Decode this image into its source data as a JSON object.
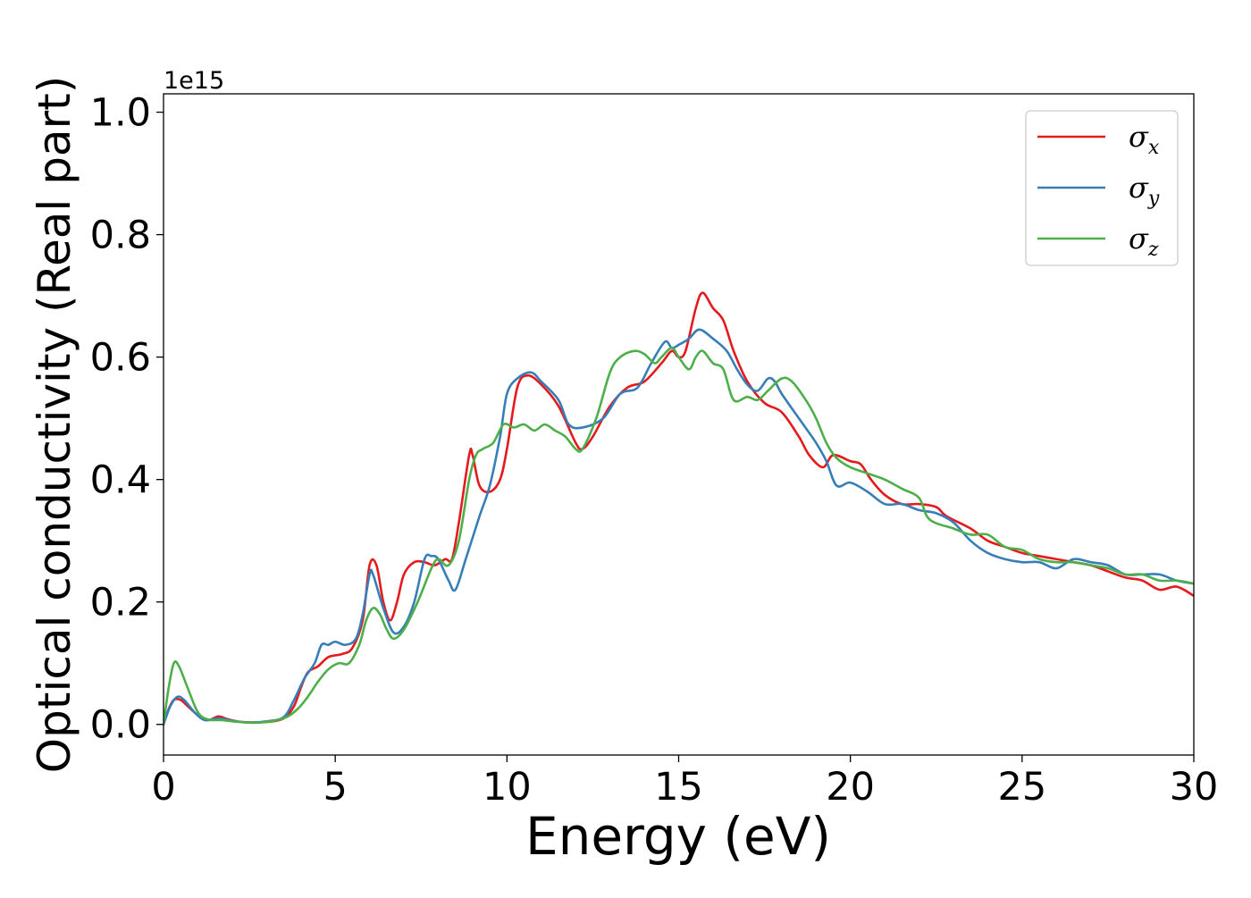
{
  "chart_data": {
    "type": "line",
    "title": "",
    "xlabel": "Energy (eV)",
    "ylabel": "Optical conductivity (Real part)",
    "y_scale_label": "1e15",
    "xlim": [
      0,
      30
    ],
    "ylim": [
      -0.05,
      1.03
    ],
    "x_ticks": [
      0,
      5,
      10,
      15,
      20,
      25,
      30
    ],
    "x_tick_labels": [
      "0",
      "5",
      "10",
      "15",
      "20",
      "25",
      "30"
    ],
    "y_ticks": [
      0.0,
      0.2,
      0.4,
      0.6,
      0.8,
      1.0
    ],
    "y_tick_labels": [
      "0.0",
      "0.2",
      "0.4",
      "0.6",
      "0.8",
      "1.0"
    ],
    "grid": false,
    "legend_position": "top-right",
    "series": [
      {
        "name": "σx",
        "legend_symbol": "σ",
        "legend_sub": "x",
        "color": "#e41a1c",
        "points": [
          [
            0,
            0
          ],
          [
            0.15,
            0.025
          ],
          [
            0.3,
            0.04
          ],
          [
            0.5,
            0.04
          ],
          [
            0.7,
            0.03
          ],
          [
            1.0,
            0.015
          ],
          [
            1.3,
            0.007
          ],
          [
            1.6,
            0.013
          ],
          [
            1.9,
            0.008
          ],
          [
            2.3,
            0.004
          ],
          [
            3.0,
            0.004
          ],
          [
            3.5,
            0.01
          ],
          [
            3.8,
            0.03
          ],
          [
            4.0,
            0.06
          ],
          [
            4.2,
            0.085
          ],
          [
            4.5,
            0.095
          ],
          [
            4.8,
            0.11
          ],
          [
            5.2,
            0.115
          ],
          [
            5.5,
            0.125
          ],
          [
            5.8,
            0.17
          ],
          [
            6.0,
            0.26
          ],
          [
            6.2,
            0.26
          ],
          [
            6.4,
            0.2
          ],
          [
            6.6,
            0.17
          ],
          [
            6.8,
            0.2
          ],
          [
            7.0,
            0.245
          ],
          [
            7.3,
            0.265
          ],
          [
            7.6,
            0.265
          ],
          [
            7.9,
            0.26
          ],
          [
            8.2,
            0.27
          ],
          [
            8.4,
            0.27
          ],
          [
            8.6,
            0.33
          ],
          [
            8.9,
            0.44
          ],
          [
            9.0,
            0.44
          ],
          [
            9.2,
            0.39
          ],
          [
            9.5,
            0.38
          ],
          [
            9.8,
            0.4
          ],
          [
            10.0,
            0.45
          ],
          [
            10.3,
            0.55
          ],
          [
            10.6,
            0.57
          ],
          [
            11.0,
            0.555
          ],
          [
            11.5,
            0.52
          ],
          [
            12.0,
            0.46
          ],
          [
            12.2,
            0.45
          ],
          [
            12.5,
            0.47
          ],
          [
            13.0,
            0.52
          ],
          [
            13.5,
            0.55
          ],
          [
            14.0,
            0.56
          ],
          [
            14.5,
            0.59
          ],
          [
            14.8,
            0.61
          ],
          [
            15.0,
            0.6
          ],
          [
            15.2,
            0.61
          ],
          [
            15.5,
            0.68
          ],
          [
            15.7,
            0.705
          ],
          [
            16.0,
            0.68
          ],
          [
            16.3,
            0.66
          ],
          [
            16.6,
            0.61
          ],
          [
            17.0,
            0.56
          ],
          [
            17.5,
            0.525
          ],
          [
            18.0,
            0.51
          ],
          [
            18.5,
            0.47
          ],
          [
            18.8,
            0.44
          ],
          [
            19.2,
            0.42
          ],
          [
            19.5,
            0.44
          ],
          [
            20.0,
            0.43
          ],
          [
            20.3,
            0.425
          ],
          [
            20.6,
            0.4
          ],
          [
            21.0,
            0.375
          ],
          [
            21.5,
            0.36
          ],
          [
            22.0,
            0.36
          ],
          [
            22.5,
            0.355
          ],
          [
            22.8,
            0.34
          ],
          [
            23.5,
            0.32
          ],
          [
            24.0,
            0.3
          ],
          [
            24.5,
            0.29
          ],
          [
            25.0,
            0.28
          ],
          [
            25.5,
            0.275
          ],
          [
            26.0,
            0.27
          ],
          [
            26.5,
            0.265
          ],
          [
            27.0,
            0.26
          ],
          [
            27.5,
            0.25
          ],
          [
            28.0,
            0.24
          ],
          [
            28.5,
            0.235
          ],
          [
            29.0,
            0.22
          ],
          [
            29.5,
            0.225
          ],
          [
            30.0,
            0.21
          ]
        ]
      },
      {
        "name": "σy",
        "legend_symbol": "σ",
        "legend_sub": "y",
        "color": "#377eb8",
        "points": [
          [
            0,
            0
          ],
          [
            0.2,
            0.03
          ],
          [
            0.4,
            0.045
          ],
          [
            0.6,
            0.04
          ],
          [
            0.9,
            0.02
          ],
          [
            1.2,
            0.007
          ],
          [
            1.6,
            0.01
          ],
          [
            2.0,
            0.006
          ],
          [
            2.5,
            0.003
          ],
          [
            3.0,
            0.005
          ],
          [
            3.5,
            0.012
          ],
          [
            3.8,
            0.04
          ],
          [
            4.1,
            0.075
          ],
          [
            4.4,
            0.1
          ],
          [
            4.6,
            0.13
          ],
          [
            4.8,
            0.13
          ],
          [
            5.0,
            0.135
          ],
          [
            5.3,
            0.13
          ],
          [
            5.6,
            0.14
          ],
          [
            5.8,
            0.18
          ],
          [
            6.0,
            0.245
          ],
          [
            6.1,
            0.245
          ],
          [
            6.4,
            0.19
          ],
          [
            6.7,
            0.15
          ],
          [
            7.0,
            0.16
          ],
          [
            7.3,
            0.2
          ],
          [
            7.6,
            0.27
          ],
          [
            7.8,
            0.275
          ],
          [
            8.0,
            0.27
          ],
          [
            8.3,
            0.235
          ],
          [
            8.5,
            0.22
          ],
          [
            8.8,
            0.27
          ],
          [
            9.2,
            0.34
          ],
          [
            9.5,
            0.39
          ],
          [
            9.8,
            0.47
          ],
          [
            10.0,
            0.54
          ],
          [
            10.3,
            0.565
          ],
          [
            10.7,
            0.575
          ],
          [
            11.0,
            0.56
          ],
          [
            11.5,
            0.53
          ],
          [
            11.8,
            0.49
          ],
          [
            12.2,
            0.485
          ],
          [
            12.8,
            0.5
          ],
          [
            13.3,
            0.54
          ],
          [
            13.8,
            0.55
          ],
          [
            14.2,
            0.59
          ],
          [
            14.6,
            0.625
          ],
          [
            14.8,
            0.615
          ],
          [
            15.0,
            0.62
          ],
          [
            15.3,
            0.63
          ],
          [
            15.6,
            0.645
          ],
          [
            16.0,
            0.63
          ],
          [
            16.4,
            0.61
          ],
          [
            16.7,
            0.58
          ],
          [
            17.0,
            0.555
          ],
          [
            17.3,
            0.545
          ],
          [
            17.6,
            0.565
          ],
          [
            17.8,
            0.56
          ],
          [
            18.0,
            0.54
          ],
          [
            18.5,
            0.5
          ],
          [
            19.0,
            0.46
          ],
          [
            19.3,
            0.43
          ],
          [
            19.6,
            0.39
          ],
          [
            20.0,
            0.395
          ],
          [
            20.5,
            0.38
          ],
          [
            21.0,
            0.36
          ],
          [
            21.5,
            0.36
          ],
          [
            22.0,
            0.35
          ],
          [
            22.5,
            0.345
          ],
          [
            23.0,
            0.33
          ],
          [
            23.5,
            0.3
          ],
          [
            24.0,
            0.28
          ],
          [
            24.5,
            0.27
          ],
          [
            25.0,
            0.265
          ],
          [
            25.5,
            0.265
          ],
          [
            26.0,
            0.255
          ],
          [
            26.5,
            0.27
          ],
          [
            27.0,
            0.265
          ],
          [
            27.5,
            0.26
          ],
          [
            28.0,
            0.245
          ],
          [
            28.5,
            0.245
          ],
          [
            29.0,
            0.245
          ],
          [
            29.5,
            0.235
          ],
          [
            30.0,
            0.23
          ]
        ]
      },
      {
        "name": "σz",
        "legend_symbol": "σ",
        "legend_sub": "z",
        "color": "#4daf4a",
        "points": [
          [
            0,
            0
          ],
          [
            0.15,
            0.06
          ],
          [
            0.3,
            0.1
          ],
          [
            0.45,
            0.095
          ],
          [
            0.7,
            0.06
          ],
          [
            1.0,
            0.02
          ],
          [
            1.3,
            0.008
          ],
          [
            1.7,
            0.007
          ],
          [
            2.2,
            0.004
          ],
          [
            2.8,
            0.003
          ],
          [
            3.5,
            0.01
          ],
          [
            3.9,
            0.025
          ],
          [
            4.2,
            0.045
          ],
          [
            4.5,
            0.07
          ],
          [
            4.8,
            0.09
          ],
          [
            5.1,
            0.1
          ],
          [
            5.4,
            0.1
          ],
          [
            5.7,
            0.13
          ],
          [
            5.9,
            0.17
          ],
          [
            6.1,
            0.19
          ],
          [
            6.3,
            0.18
          ],
          [
            6.5,
            0.155
          ],
          [
            6.7,
            0.14
          ],
          [
            7.0,
            0.155
          ],
          [
            7.4,
            0.2
          ],
          [
            7.8,
            0.255
          ],
          [
            8.0,
            0.27
          ],
          [
            8.3,
            0.26
          ],
          [
            8.6,
            0.3
          ],
          [
            8.9,
            0.4
          ],
          [
            9.1,
            0.44
          ],
          [
            9.3,
            0.45
          ],
          [
            9.6,
            0.46
          ],
          [
            9.9,
            0.49
          ],
          [
            10.2,
            0.485
          ],
          [
            10.5,
            0.49
          ],
          [
            10.8,
            0.48
          ],
          [
            11.1,
            0.49
          ],
          [
            11.4,
            0.48
          ],
          [
            11.7,
            0.47
          ],
          [
            12.0,
            0.45
          ],
          [
            12.2,
            0.45
          ],
          [
            12.6,
            0.5
          ],
          [
            13.0,
            0.575
          ],
          [
            13.3,
            0.6
          ],
          [
            13.7,
            0.61
          ],
          [
            14.0,
            0.605
          ],
          [
            14.3,
            0.59
          ],
          [
            14.5,
            0.6
          ],
          [
            14.8,
            0.615
          ],
          [
            15.0,
            0.6
          ],
          [
            15.3,
            0.58
          ],
          [
            15.5,
            0.6
          ],
          [
            15.7,
            0.61
          ],
          [
            16.0,
            0.59
          ],
          [
            16.3,
            0.58
          ],
          [
            16.6,
            0.53
          ],
          [
            17.0,
            0.535
          ],
          [
            17.3,
            0.53
          ],
          [
            17.6,
            0.545
          ],
          [
            18.0,
            0.565
          ],
          [
            18.3,
            0.56
          ],
          [
            18.7,
            0.53
          ],
          [
            19.0,
            0.5
          ],
          [
            19.3,
            0.46
          ],
          [
            19.6,
            0.435
          ],
          [
            20.0,
            0.42
          ],
          [
            20.5,
            0.41
          ],
          [
            21.0,
            0.4
          ],
          [
            21.5,
            0.385
          ],
          [
            22.0,
            0.37
          ],
          [
            22.3,
            0.335
          ],
          [
            23.0,
            0.32
          ],
          [
            23.5,
            0.31
          ],
          [
            24.0,
            0.31
          ],
          [
            24.5,
            0.29
          ],
          [
            25.0,
            0.285
          ],
          [
            25.5,
            0.27
          ],
          [
            26.0,
            0.265
          ],
          [
            26.5,
            0.265
          ],
          [
            27.0,
            0.26
          ],
          [
            27.5,
            0.255
          ],
          [
            28.0,
            0.245
          ],
          [
            28.5,
            0.245
          ],
          [
            29.0,
            0.235
          ],
          [
            29.5,
            0.235
          ],
          [
            30.0,
            0.23
          ]
        ]
      }
    ]
  }
}
